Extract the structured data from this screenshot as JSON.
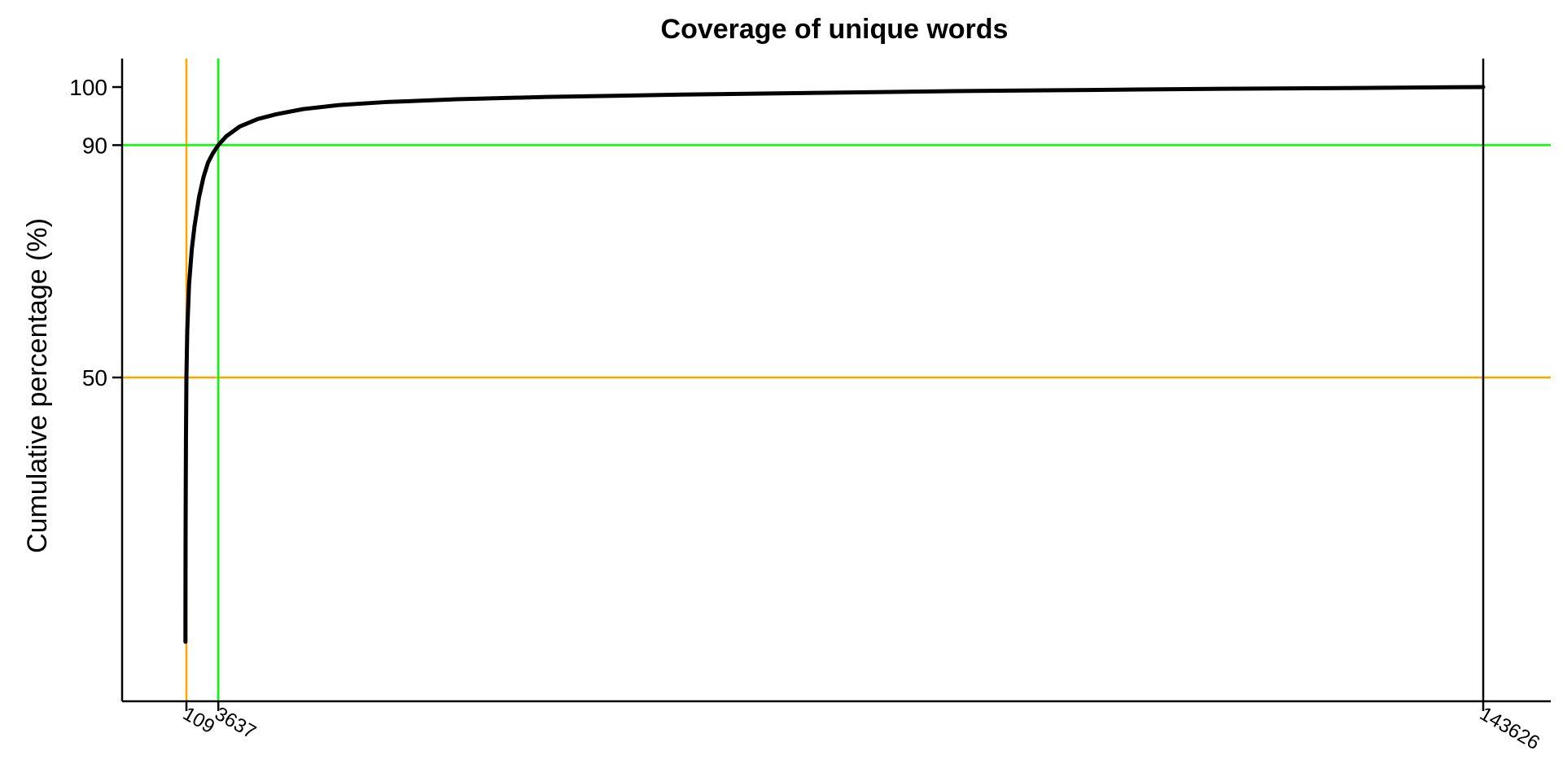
{
  "chart_data": {
    "type": "line",
    "title": "Coverage of unique words",
    "xlabel": "",
    "ylabel": "Cumulative percentage (%)",
    "xlim": [
      1,
      150000
    ],
    "ylim": [
      0,
      100
    ],
    "x_ticks": [
      109,
      3637,
      143626
    ],
    "y_ticks": [
      50,
      90,
      100
    ],
    "grid": false,
    "series": [
      {
        "color": "#000000",
        "x": [
          1,
          2,
          3,
          5,
          8,
          12,
          20,
          35,
          60,
          109,
          200,
          400,
          700,
          1000,
          1500,
          2000,
          2500,
          3000,
          3637,
          4500,
          6000,
          8000,
          10000,
          13000,
          17000,
          22000,
          30000,
          40000,
          55000,
          70000,
          85000,
          100000,
          115000,
          130000,
          143626
        ],
        "y": [
          4.5,
          7.5,
          10,
          13,
          16,
          19,
          24,
          31,
          40,
          50,
          58,
          66,
          72,
          76,
          81,
          84.5,
          87,
          88.5,
          90,
          91.5,
          93.2,
          94.5,
          95.3,
          96.2,
          96.9,
          97.4,
          97.9,
          98.3,
          98.7,
          99.0,
          99.3,
          99.5,
          99.7,
          99.85,
          100
        ]
      }
    ],
    "reference_lines": [
      {
        "orientation": "vertical",
        "x": 109,
        "color": "#FFA500"
      },
      {
        "orientation": "horizontal",
        "y": 50,
        "color": "#FFA500"
      },
      {
        "orientation": "vertical",
        "x": 3637,
        "color": "#00FF00"
      },
      {
        "orientation": "horizontal",
        "y": 90,
        "color": "#00FF00"
      },
      {
        "orientation": "vertical",
        "x": 143626,
        "color": "#000000"
      }
    ]
  }
}
